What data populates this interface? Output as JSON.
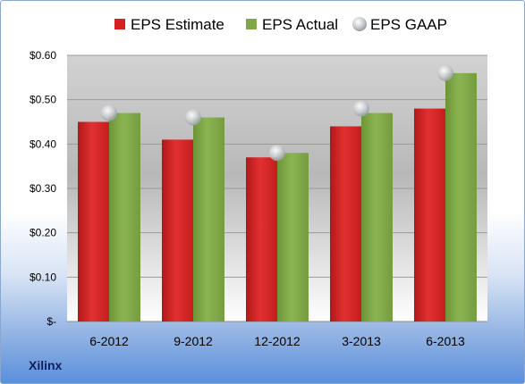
{
  "chart_data": {
    "type": "bar",
    "categories": [
      "6-2012",
      "9-2012",
      "12-2012",
      "3-2013",
      "6-2013"
    ],
    "series": [
      {
        "name": "EPS Estimate",
        "values": [
          0.45,
          0.41,
          0.37,
          0.44,
          0.48
        ],
        "color": "#d42020",
        "kind": "bar"
      },
      {
        "name": "EPS Actual",
        "values": [
          0.47,
          0.46,
          0.38,
          0.47,
          0.56
        ],
        "color": "#7fa748",
        "kind": "bar"
      },
      {
        "name": "EPS GAAP",
        "values": [
          0.47,
          0.46,
          0.38,
          0.48,
          0.56
        ],
        "color": "#c8ccd2",
        "kind": "marker"
      }
    ],
    "ylim": [
      0,
      0.6
    ],
    "yticks": [
      0,
      0.1,
      0.2,
      0.3,
      0.4,
      0.5,
      0.6
    ],
    "ytick_labels": [
      "$-",
      "$0.10",
      "$0.20",
      "$0.30",
      "$0.40",
      "$0.50",
      "$0.60"
    ],
    "grid": true,
    "legend": "top-center",
    "footer_label": "Xilinx"
  }
}
